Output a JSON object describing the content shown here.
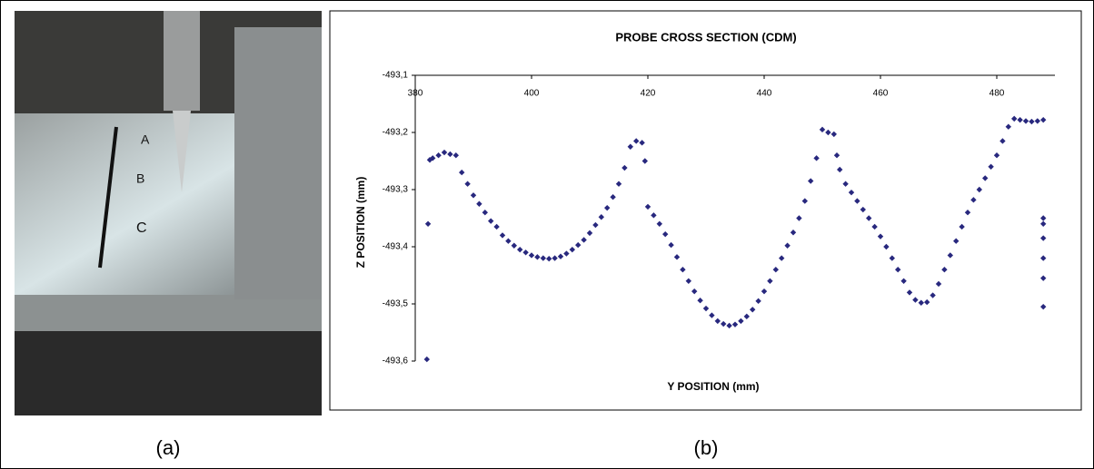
{
  "panel_labels": [
    "(a)",
    "(b)"
  ],
  "photo": {
    "marks": [
      "A",
      "B",
      "C"
    ]
  },
  "chart_data": {
    "type": "scatter",
    "title": "PROBE CROSS SECTION (CDM)",
    "x_label": "Y POSITION (mm)",
    "y_label": "Z POSITION (mm)",
    "xlim": [
      380,
      490
    ],
    "xticks": [
      380,
      400,
      420,
      440,
      460,
      480
    ],
    "ylim": [
      -493.6,
      -493.1
    ],
    "yticks": [
      {
        "value": -493.1,
        "label": "-493,1"
      },
      {
        "value": -493.2,
        "label": "-493,2"
      },
      {
        "value": -493.3,
        "label": "-493,3"
      },
      {
        "value": -493.4,
        "label": "-493,4"
      },
      {
        "value": -493.5,
        "label": "-493,5"
      },
      {
        "value": -493.6,
        "label": "-493,6"
      }
    ],
    "grid": false,
    "series": [
      {
        "color": "#28287e",
        "x": [
          382,
          382.2,
          382.5,
          383,
          384,
          385,
          386,
          387,
          388,
          389,
          390,
          391,
          392,
          393,
          394,
          395,
          396,
          397,
          398,
          399,
          400,
          401,
          402,
          403,
          404,
          405,
          406,
          407,
          408,
          409,
          410,
          411,
          412,
          413,
          414,
          415,
          416,
          417,
          418,
          419,
          419.5,
          420,
          421,
          422,
          423,
          424,
          425,
          426,
          427,
          428,
          429,
          430,
          431,
          432,
          433,
          434,
          435,
          436,
          437,
          438,
          439,
          440,
          441,
          442,
          443,
          444,
          445,
          446,
          447,
          448,
          449,
          450,
          451,
          452,
          452.5,
          453,
          454,
          455,
          456,
          457,
          458,
          459,
          460,
          461,
          462,
          463,
          464,
          465,
          466,
          467,
          468,
          469,
          470,
          471,
          472,
          473,
          474,
          475,
          476,
          477,
          478,
          479,
          480,
          481,
          482,
          483,
          484,
          485,
          486,
          487,
          488,
          488,
          488,
          488,
          488,
          488,
          488
        ],
        "values": [
          -493.597,
          -493.36,
          -493.248,
          -493.245,
          -493.24,
          -493.235,
          -493.238,
          -493.24,
          -493.27,
          -493.29,
          -493.31,
          -493.325,
          -493.34,
          -493.355,
          -493.365,
          -493.38,
          -493.39,
          -493.398,
          -493.405,
          -493.41,
          -493.415,
          -493.418,
          -493.42,
          -493.421,
          -493.42,
          -493.417,
          -493.412,
          -493.405,
          -493.397,
          -493.388,
          -493.376,
          -493.362,
          -493.348,
          -493.332,
          -493.313,
          -493.29,
          -493.262,
          -493.225,
          -493.215,
          -493.218,
          -493.25,
          -493.33,
          -493.345,
          -493.36,
          -493.378,
          -493.397,
          -493.418,
          -493.44,
          -493.46,
          -493.478,
          -493.494,
          -493.508,
          -493.52,
          -493.53,
          -493.535,
          -493.538,
          -493.536,
          -493.53,
          -493.522,
          -493.51,
          -493.495,
          -493.478,
          -493.46,
          -493.44,
          -493.42,
          -493.398,
          -493.375,
          -493.35,
          -493.32,
          -493.285,
          -493.245,
          -493.195,
          -493.2,
          -493.203,
          -493.24,
          -493.265,
          -493.29,
          -493.305,
          -493.32,
          -493.335,
          -493.35,
          -493.365,
          -493.382,
          -493.4,
          -493.42,
          -493.44,
          -493.46,
          -493.48,
          -493.493,
          -493.498,
          -493.497,
          -493.485,
          -493.465,
          -493.44,
          -493.415,
          -493.39,
          -493.365,
          -493.34,
          -493.318,
          -493.3,
          -493.28,
          -493.26,
          -493.24,
          -493.215,
          -493.19,
          -493.176,
          -493.178,
          -493.18,
          -493.181,
          -493.18,
          -493.178,
          -493.35,
          -493.36,
          -493.385,
          -493.42,
          -493.455,
          -493.505
        ]
      }
    ]
  }
}
